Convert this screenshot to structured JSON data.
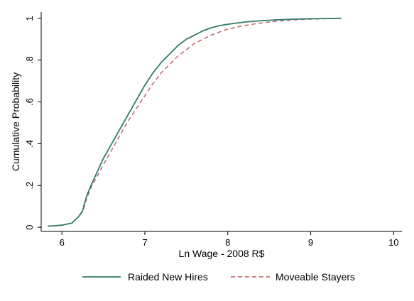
{
  "chart_data": {
    "type": "line",
    "title": "",
    "xlabel": "Ln Wage - 2008 R$",
    "ylabel": "Cumulative Probability",
    "xlim": [
      5.75,
      10.1
    ],
    "ylim": [
      -0.02,
      1.03
    ],
    "x_ticks": [
      6,
      7,
      8,
      9,
      10
    ],
    "x_tick_labels": [
      "6",
      "7",
      "8",
      "9",
      "10"
    ],
    "y_ticks": [
      0,
      0.2,
      0.4,
      0.6,
      0.8,
      1
    ],
    "y_tick_labels": [
      "0",
      ".2",
      ".4",
      ".6",
      ".8",
      "1"
    ],
    "grid": false,
    "legend_position": "bottom",
    "series": [
      {
        "name": "Raided New Hires",
        "color": "#2e7d6b",
        "style": "solid",
        "x": [
          5.83,
          6.0,
          6.12,
          6.2,
          6.25,
          6.27,
          6.3,
          6.35,
          6.42,
          6.5,
          6.6,
          6.7,
          6.8,
          6.9,
          7.0,
          7.1,
          7.2,
          7.3,
          7.4,
          7.5,
          7.6,
          7.7,
          7.8,
          7.9,
          8.0,
          8.2,
          8.4,
          8.6,
          8.8,
          9.0,
          9.2,
          9.37
        ],
        "y": [
          0.005,
          0.01,
          0.02,
          0.05,
          0.08,
          0.11,
          0.15,
          0.2,
          0.26,
          0.33,
          0.4,
          0.47,
          0.54,
          0.61,
          0.68,
          0.74,
          0.79,
          0.83,
          0.87,
          0.9,
          0.92,
          0.94,
          0.955,
          0.965,
          0.972,
          0.982,
          0.989,
          0.993,
          0.996,
          0.998,
          0.999,
          1.0
        ]
      },
      {
        "name": "Moveable Stayers",
        "color": "#b85c5c",
        "style": "dashed",
        "x": [
          5.83,
          6.0,
          6.12,
          6.2,
          6.25,
          6.27,
          6.3,
          6.35,
          6.42,
          6.5,
          6.6,
          6.7,
          6.8,
          6.9,
          7.0,
          7.1,
          7.2,
          7.3,
          7.4,
          7.5,
          7.6,
          7.7,
          7.8,
          7.9,
          8.0,
          8.2,
          8.4,
          8.6,
          8.8,
          9.0,
          9.2,
          9.37
        ],
        "y": [
          0.005,
          0.01,
          0.02,
          0.05,
          0.075,
          0.1,
          0.14,
          0.19,
          0.24,
          0.3,
          0.37,
          0.44,
          0.51,
          0.57,
          0.63,
          0.69,
          0.74,
          0.78,
          0.82,
          0.85,
          0.88,
          0.9,
          0.92,
          0.935,
          0.948,
          0.966,
          0.978,
          0.987,
          0.993,
          0.996,
          0.998,
          1.0
        ]
      }
    ]
  }
}
